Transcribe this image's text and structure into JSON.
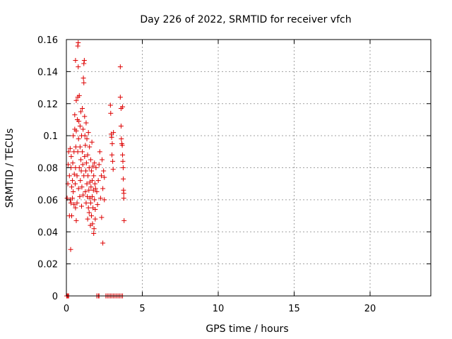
{
  "chart_data": {
    "type": "scatter",
    "title": "Day 226 of 2022, SRMTID for receiver vfch",
    "xlabel": "GPS time / hours",
    "ylabel": "SRMTID / TECUs",
    "xlim": [
      0,
      24
    ],
    "ylim": [
      0,
      0.16
    ],
    "xticks": [
      0,
      5,
      10,
      15,
      20
    ],
    "yticks": [
      0,
      0.02,
      0.04,
      0.06,
      0.08,
      0.1,
      0.12,
      0.14,
      0.16
    ],
    "xtick_labels": [
      "0",
      "5",
      "10",
      "15",
      "20"
    ],
    "ytick_labels": [
      "0",
      "0.02",
      "0.04",
      "0.06",
      "0.08",
      "0.1",
      "0.12",
      "0.14",
      "0.16"
    ],
    "grid": true,
    "marker": "+",
    "color": "#dd0000",
    "points": [
      [
        0.02,
        0.0
      ],
      [
        0.05,
        0.0
      ],
      [
        0.1,
        0.0
      ],
      [
        0.15,
        0.0
      ],
      [
        2.0,
        0.0
      ],
      [
        2.1,
        0.0
      ],
      [
        2.15,
        0.0
      ],
      [
        2.6,
        0.0
      ],
      [
        2.7,
        0.0
      ],
      [
        2.8,
        0.0
      ],
      [
        2.9,
        0.0
      ],
      [
        3.0,
        0.0
      ],
      [
        3.1,
        0.0
      ],
      [
        3.2,
        0.0
      ],
      [
        3.3,
        0.0
      ],
      [
        3.4,
        0.0
      ],
      [
        3.5,
        0.0
      ],
      [
        3.6,
        0.0
      ],
      [
        3.7,
        0.0
      ],
      [
        0.28,
        0.029
      ],
      [
        0.05,
        0.061
      ],
      [
        0.1,
        0.07
      ],
      [
        0.12,
        0.082
      ],
      [
        0.15,
        0.09
      ],
      [
        0.2,
        0.05
      ],
      [
        0.2,
        0.075
      ],
      [
        0.25,
        0.06
      ],
      [
        0.25,
        0.092
      ],
      [
        0.3,
        0.058
      ],
      [
        0.3,
        0.08
      ],
      [
        0.32,
        0.087
      ],
      [
        0.35,
        0.05
      ],
      [
        0.35,
        0.068
      ],
      [
        0.4,
        0.061
      ],
      [
        0.4,
        0.072
      ],
      [
        0.42,
        0.083
      ],
      [
        0.45,
        0.065
      ],
      [
        0.45,
        0.1
      ],
      [
        0.5,
        0.057
      ],
      [
        0.5,
        0.09
      ],
      [
        0.52,
        0.076
      ],
      [
        0.55,
        0.104
      ],
      [
        0.55,
        0.113
      ],
      [
        0.58,
        0.07
      ],
      [
        0.6,
        0.055
      ],
      [
        0.6,
        0.08
      ],
      [
        0.62,
        0.093
      ],
      [
        0.6,
        0.147
      ],
      [
        0.65,
        0.047
      ],
      [
        0.65,
        0.103
      ],
      [
        0.65,
        0.122
      ],
      [
        0.7,
        0.058
      ],
      [
        0.7,
        0.075
      ],
      [
        0.72,
        0.11
      ],
      [
        0.75,
        0.09
      ],
      [
        0.75,
        0.124
      ],
      [
        0.75,
        0.156
      ],
      [
        0.78,
        0.158
      ],
      [
        0.78,
        0.143
      ],
      [
        0.8,
        0.067
      ],
      [
        0.8,
        0.098
      ],
      [
        0.82,
        0.109
      ],
      [
        0.85,
        0.08
      ],
      [
        0.85,
        0.125
      ],
      [
        0.88,
        0.062
      ],
      [
        0.9,
        0.093
      ],
      [
        0.9,
        0.106
      ],
      [
        0.92,
        0.072
      ],
      [
        0.95,
        0.085
      ],
      [
        0.95,
        0.115
      ],
      [
        0.98,
        0.078
      ],
      [
        1.0,
        0.056
      ],
      [
        1.0,
        0.1
      ],
      [
        1.02,
        0.068
      ],
      [
        1.05,
        0.09
      ],
      [
        1.05,
        0.117
      ],
      [
        1.08,
        0.082
      ],
      [
        1.1,
        0.063
      ],
      [
        1.1,
        0.104
      ],
      [
        1.12,
        0.136
      ],
      [
        1.15,
        0.075
      ],
      [
        1.15,
        0.133
      ],
      [
        1.15,
        0.145
      ],
      [
        1.18,
        0.147
      ],
      [
        1.2,
        0.087
      ],
      [
        1.2,
        0.112
      ],
      [
        1.22,
        0.1
      ],
      [
        1.25,
        0.065
      ],
      [
        1.25,
        0.094
      ],
      [
        1.28,
        0.078
      ],
      [
        1.3,
        0.058
      ],
      [
        1.3,
        0.108
      ],
      [
        1.32,
        0.083
      ],
      [
        1.35,
        0.07
      ],
      [
        1.35,
        0.098
      ],
      [
        1.38,
        0.062
      ],
      [
        1.4,
        0.048
      ],
      [
        1.4,
        0.088
      ],
      [
        1.42,
        0.075
      ],
      [
        1.45,
        0.055
      ],
      [
        1.45,
        0.102
      ],
      [
        1.48,
        0.066
      ],
      [
        1.5,
        0.052
      ],
      [
        1.5,
        0.08
      ],
      [
        1.52,
        0.093
      ],
      [
        1.55,
        0.061
      ],
      [
        1.55,
        0.071
      ],
      [
        1.58,
        0.044
      ],
      [
        1.6,
        0.085
      ],
      [
        1.6,
        0.058
      ],
      [
        1.62,
        0.068
      ],
      [
        1.65,
        0.05
      ],
      [
        1.65,
        0.078
      ],
      [
        1.68,
        0.096
      ],
      [
        1.7,
        0.062
      ],
      [
        1.7,
        0.072
      ],
      [
        1.72,
        0.045
      ],
      [
        1.75,
        0.081
      ],
      [
        1.75,
        0.055
      ],
      [
        1.78,
        0.066
      ],
      [
        1.8,
        0.039
      ],
      [
        1.8,
        0.075
      ],
      [
        1.82,
        0.042
      ],
      [
        1.85,
        0.06
      ],
      [
        1.85,
        0.083
      ],
      [
        1.88,
        0.07
      ],
      [
        1.9,
        0.048
      ],
      [
        1.9,
        0.054
      ],
      [
        1.92,
        0.067
      ],
      [
        1.95,
        0.08
      ],
      [
        2.0,
        0.065
      ],
      [
        2.05,
        0.057
      ],
      [
        2.1,
        0.072
      ],
      [
        2.15,
        0.082
      ],
      [
        2.2,
        0.09
      ],
      [
        2.25,
        0.061
      ],
      [
        2.3,
        0.075
      ],
      [
        2.32,
        0.049
      ],
      [
        2.35,
        0.085
      ],
      [
        2.4,
        0.033
      ],
      [
        2.4,
        0.067
      ],
      [
        2.45,
        0.078
      ],
      [
        2.5,
        0.06
      ],
      [
        2.5,
        0.074
      ],
      [
        2.9,
        0.119
      ],
      [
        2.92,
        0.114
      ],
      [
        2.95,
        0.101
      ],
      [
        2.98,
        0.099
      ],
      [
        3.0,
        0.088
      ],
      [
        3.02,
        0.095
      ],
      [
        3.05,
        0.084
      ],
      [
        3.08,
        0.079
      ],
      [
        3.1,
        0.102
      ],
      [
        3.55,
        0.143
      ],
      [
        3.55,
        0.124
      ],
      [
        3.6,
        0.117
      ],
      [
        3.6,
        0.106
      ],
      [
        3.62,
        0.098
      ],
      [
        3.65,
        0.095
      ],
      [
        3.68,
        0.094
      ],
      [
        3.7,
        0.118
      ],
      [
        3.7,
        0.088
      ],
      [
        3.72,
        0.084
      ],
      [
        3.74,
        0.08
      ],
      [
        3.75,
        0.073
      ],
      [
        3.76,
        0.066
      ],
      [
        3.78,
        0.064
      ],
      [
        3.78,
        0.061
      ],
      [
        3.8,
        0.047
      ]
    ]
  }
}
